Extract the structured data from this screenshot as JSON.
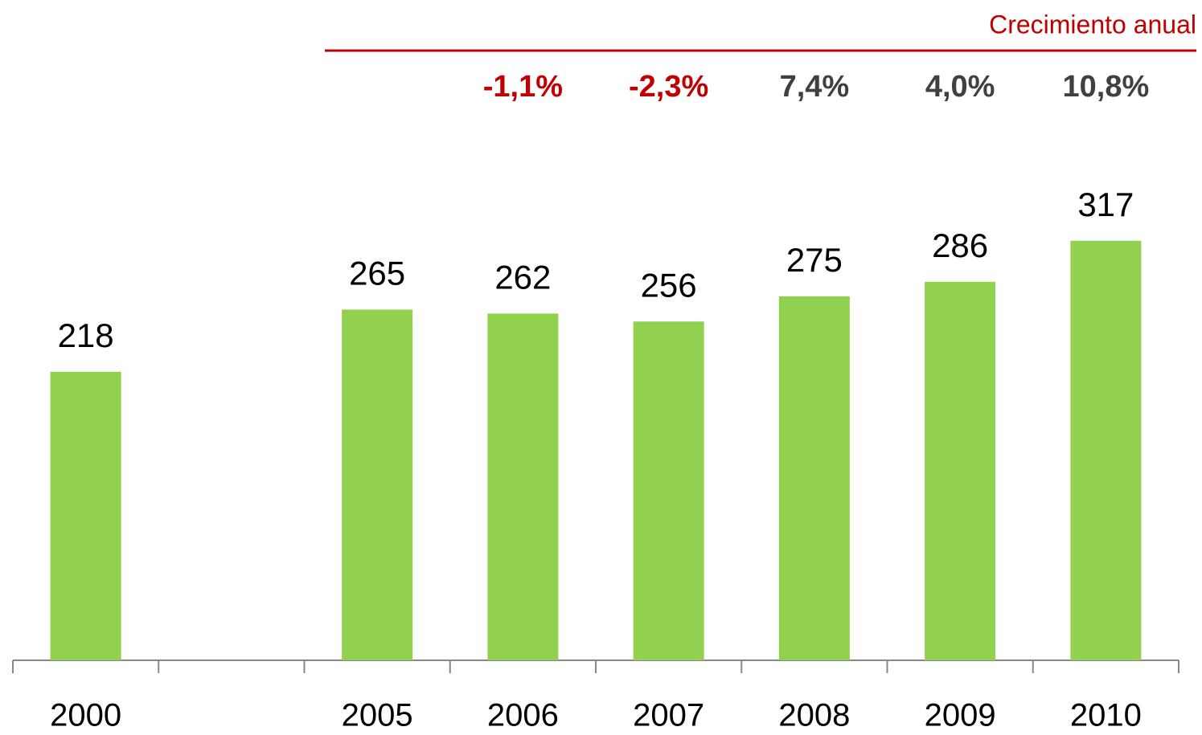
{
  "chart_data": {
    "type": "bar",
    "categories": [
      "2000",
      null,
      "2005",
      "2006",
      "2007",
      "2008",
      "2009",
      "2010"
    ],
    "values": [
      218,
      null,
      265,
      262,
      256,
      275,
      286,
      317
    ],
    "color": "#92d050",
    "ylim": [
      0,
      400
    ],
    "growth_title": "Crecimiento anual",
    "growth_rates": [
      null,
      null,
      null,
      "-1,1%",
      "-2,3%",
      "7,4%",
      "4,0%",
      "10,8%"
    ],
    "growth_colors": [
      null,
      null,
      null,
      "#c00000",
      "#c00000",
      "#404040",
      "#404040",
      "#404040"
    ],
    "growth_title_color": "#c00000"
  }
}
